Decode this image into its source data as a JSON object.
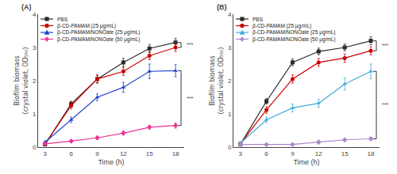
{
  "chart_data": [
    {
      "type": "line",
      "title": "(A)",
      "x": [
        3,
        6,
        9,
        12,
        15,
        18
      ],
      "xlabel": "Time (h)",
      "ylabel": "Biofilm biomass\n(crystal violet, OD₅₅₀)",
      "xlim": [
        2.2,
        19.0
      ],
      "xticks": [
        3,
        6,
        9,
        12,
        15,
        18
      ],
      "ylim": [
        0,
        4.0
      ],
      "yticks": [
        0,
        1,
        2,
        3,
        4
      ],
      "grid": false,
      "legend": "upper left",
      "series": [
        {
          "name": "PBS",
          "color": "#2b2b2b",
          "marker": "square",
          "values": [
            0.08,
            1.3,
            2.05,
            2.55,
            2.97,
            3.15
          ],
          "yerr": [
            0.04,
            0.08,
            0.12,
            0.12,
            0.12,
            0.12
          ]
        },
        {
          "name": "β-CD-PAMAM (25 μg/mL)",
          "color": "#cc0000",
          "marker": "circle",
          "values": [
            0.1,
            1.25,
            2.05,
            2.28,
            2.75,
            3.0
          ],
          "yerr": [
            0.04,
            0.1,
            0.12,
            0.12,
            0.12,
            0.12
          ]
        },
        {
          "name": "β-CD-PAMAM/NONOate (25 μg/mL)",
          "color": "#2244cc",
          "marker": "triangle-up",
          "values": [
            0.15,
            0.82,
            1.5,
            1.8,
            2.28,
            2.3
          ],
          "yerr": [
            0.04,
            0.08,
            0.1,
            0.15,
            0.22,
            0.18
          ]
        },
        {
          "name": "β-CD-PAMAM/NONOate (50 μg/mL)",
          "color": "#ee3399",
          "marker": "diamond",
          "values": [
            0.1,
            0.18,
            0.28,
            0.42,
            0.6,
            0.65
          ],
          "yerr": [
            0.03,
            0.03,
            0.05,
            0.06,
            0.06,
            0.08
          ]
        }
      ],
      "annotations": [
        {
          "text": "***",
          "y_top": 3.15,
          "y_bot": 3.0
        },
        {
          "text": "***",
          "y_top": 2.3,
          "y_bot": 0.65
        }
      ]
    },
    {
      "type": "line",
      "title": "(B)",
      "x": [
        3,
        6,
        9,
        12,
        15,
        18
      ],
      "xlabel": "Time (h)",
      "ylabel": "Biofilm biomass\n(crystal violet, OD₅₅₀)",
      "xlim": [
        2.2,
        19.0
      ],
      "xticks": [
        3,
        6,
        9,
        12,
        15,
        18
      ],
      "ylim": [
        0,
        4.0
      ],
      "yticks": [
        0,
        1,
        2,
        3,
        4
      ],
      "grid": false,
      "legend": "upper left",
      "series": [
        {
          "name": "PBS",
          "color": "#2b2b2b",
          "marker": "square",
          "values": [
            0.08,
            1.38,
            2.55,
            2.88,
            3.0,
            3.2
          ],
          "yerr": [
            0.04,
            0.08,
            0.1,
            0.1,
            0.1,
            0.12
          ]
        },
        {
          "name": "β-CD-PAMAM (25 μg/mL)",
          "color": "#cc0000",
          "marker": "circle",
          "values": [
            0.1,
            1.12,
            2.05,
            2.55,
            2.68,
            2.9
          ],
          "yerr": [
            0.04,
            0.1,
            0.12,
            0.12,
            0.12,
            0.12
          ]
        },
        {
          "name": "β-CD-PAMAM/NONOate (25 μg/mL)",
          "color": "#44aadd",
          "marker": "triangle-up",
          "values": [
            0.12,
            0.82,
            1.18,
            1.32,
            1.9,
            2.28
          ],
          "yerr": [
            0.04,
            0.08,
            0.12,
            0.12,
            0.18,
            0.22
          ]
        },
        {
          "name": "β-CD-PAMAM/NONOate (50 μg/mL)",
          "color": "#aa88cc",
          "marker": "diamond",
          "values": [
            0.08,
            0.08,
            0.08,
            0.15,
            0.22,
            0.25
          ],
          "yerr": [
            0.03,
            0.03,
            0.03,
            0.05,
            0.05,
            0.05
          ]
        }
      ],
      "annotations": [
        {
          "text": "***",
          "y_top": 3.2,
          "y_bot": 2.9
        },
        {
          "text": "***",
          "y_top": 2.28,
          "y_bot": 0.25
        }
      ]
    }
  ]
}
